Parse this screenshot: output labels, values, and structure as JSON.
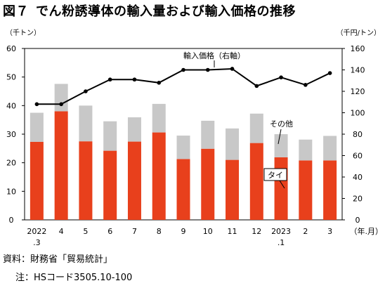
{
  "header": {
    "figure_label": "図７",
    "title": "でん粉誘導体の輸入量および輸入価格の推移"
  },
  "footer": {
    "source": "資料：財務省「貿易統計」",
    "note": "注：HSコード3505.10-100"
  },
  "chart_data": {
    "type": "bar",
    "stacked": true,
    "grid": false,
    "left_axis_unit": "（千トン）",
    "right_axis_unit": "（千円/トン）",
    "x_unit": "（年.月）",
    "ylim_left": [
      0,
      60
    ],
    "yticks_left": [
      "0",
      "10",
      "20",
      "30",
      "40",
      "50",
      "60"
    ],
    "ylim_right": [
      0,
      160
    ],
    "yticks_right": [
      "0",
      "20",
      "40",
      "60",
      "80",
      "100",
      "120",
      "140",
      "160"
    ],
    "categories": [
      [
        "2022",
        ".3"
      ],
      [
        "4"
      ],
      [
        "5"
      ],
      [
        "6"
      ],
      [
        "7"
      ],
      [
        "8"
      ],
      [
        "9"
      ],
      [
        "10"
      ],
      [
        "11"
      ],
      [
        "12"
      ],
      [
        "2023",
        ".1"
      ],
      [
        "2"
      ],
      [
        "3"
      ]
    ],
    "series": [
      {
        "name": "タイ",
        "type": "bar",
        "axis": "left",
        "color": "#e8401c",
        "values": [
          27.3,
          38,
          27.5,
          24.2,
          27.4,
          30.6,
          21.3,
          24.9,
          21,
          26.9,
          21.9,
          20.8,
          20.8
        ]
      },
      {
        "name": "その他",
        "type": "bar",
        "axis": "left",
        "color": "#c8c8c8",
        "values": [
          10.2,
          9.6,
          12.5,
          10.3,
          8.5,
          10,
          8.2,
          9.8,
          11,
          10.3,
          8.1,
          7.3,
          8.6
        ]
      },
      {
        "name": "輸入価格（右軸）",
        "type": "line",
        "axis": "right",
        "color": "#000000",
        "values": [
          108,
          108,
          120,
          131,
          131,
          128,
          140,
          140,
          141,
          125,
          133,
          126,
          137
        ]
      }
    ],
    "annotations": {
      "line_label": "輸入価格（右軸）",
      "other_label": "その他",
      "thai_label": "タイ"
    }
  }
}
